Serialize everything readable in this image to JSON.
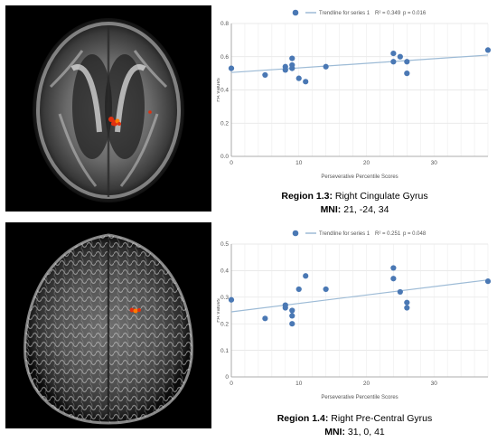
{
  "panels": [
    {
      "region_label": "Region 1.3:",
      "region_name": "Right Cingulate Gyrus",
      "mni_label": "MNI:",
      "mni_value": "21, -24, 34",
      "legend_series": "Trendline for series 1",
      "legend_r2": "R² = 0.349",
      "legend_p": "p = 0.016",
      "brain_colors": {
        "highlight": "#e03010",
        "accent": "#ff7a00"
      }
    },
    {
      "region_label": "Region 1.4:",
      "region_name": "Right Pre-Central Gyrus",
      "mni_label": "MNI:",
      "mni_value": "31, 0, 41",
      "legend_series": "Trendline for series 1",
      "legend_r2": "R² = 0.251",
      "legend_p": "p = 0.048",
      "brain_colors": {
        "highlight": "#e03010",
        "accent": "#ff7a00"
      }
    }
  ],
  "chart_data": [
    {
      "type": "scatter",
      "title": "",
      "xlabel": "Perseverative Percentile Scores",
      "ylabel": "FA Values",
      "xlim": [
        0,
        38
      ],
      "ylim": [
        0,
        0.8
      ],
      "xticks": [
        0,
        10,
        20,
        30
      ],
      "yticks": [
        0.0,
        0.2,
        0.4,
        0.6,
        0.8
      ],
      "tick_labels_y": [
        "0.0",
        "0.2",
        "0.4",
        "0.6",
        "0.8"
      ],
      "tick_labels_x": [
        "0",
        "10",
        "20",
        "30"
      ],
      "grid": true,
      "legend": "top",
      "point_color": "#4a78b4",
      "trend_color": "#9dbbd6",
      "points": [
        [
          0,
          0.53
        ],
        [
          5,
          0.49
        ],
        [
          8,
          0.52
        ],
        [
          8,
          0.54
        ],
        [
          9,
          0.53
        ],
        [
          9,
          0.55
        ],
        [
          9,
          0.59
        ],
        [
          10,
          0.47
        ],
        [
          11,
          0.45
        ],
        [
          14,
          0.54
        ],
        [
          24,
          0.62
        ],
        [
          24,
          0.57
        ],
        [
          25,
          0.6
        ],
        [
          26,
          0.57
        ],
        [
          26,
          0.5
        ],
        [
          38,
          0.64
        ]
      ],
      "trendline": [
        [
          0,
          0.505
        ],
        [
          38,
          0.61
        ]
      ]
    },
    {
      "type": "scatter",
      "title": "",
      "xlabel": "Perseverative Percentile Scores",
      "ylabel": "FA Values",
      "xlim": [
        0,
        38
      ],
      "ylim": [
        0,
        0.5
      ],
      "xticks": [
        0,
        10,
        20,
        30
      ],
      "yticks": [
        0,
        0.1,
        0.2,
        0.3,
        0.4,
        0.5
      ],
      "tick_labels_y": [
        "0",
        "0.1",
        "0.2",
        "0.3",
        "0.4",
        "0.5"
      ],
      "tick_labels_x": [
        "0",
        "10",
        "20",
        "30"
      ],
      "grid": true,
      "legend": "top",
      "point_color": "#4a78b4",
      "trend_color": "#9dbbd6",
      "points": [
        [
          0,
          0.29
        ],
        [
          5,
          0.22
        ],
        [
          8,
          0.26
        ],
        [
          8,
          0.27
        ],
        [
          9,
          0.25
        ],
        [
          9,
          0.23
        ],
        [
          9,
          0.2
        ],
        [
          10,
          0.33
        ],
        [
          11,
          0.38
        ],
        [
          14,
          0.33
        ],
        [
          24,
          0.41
        ],
        [
          24,
          0.37
        ],
        [
          25,
          0.32
        ],
        [
          26,
          0.28
        ],
        [
          26,
          0.26
        ],
        [
          38,
          0.36
        ]
      ],
      "trendline": [
        [
          0,
          0.245
        ],
        [
          38,
          0.365
        ]
      ]
    }
  ]
}
